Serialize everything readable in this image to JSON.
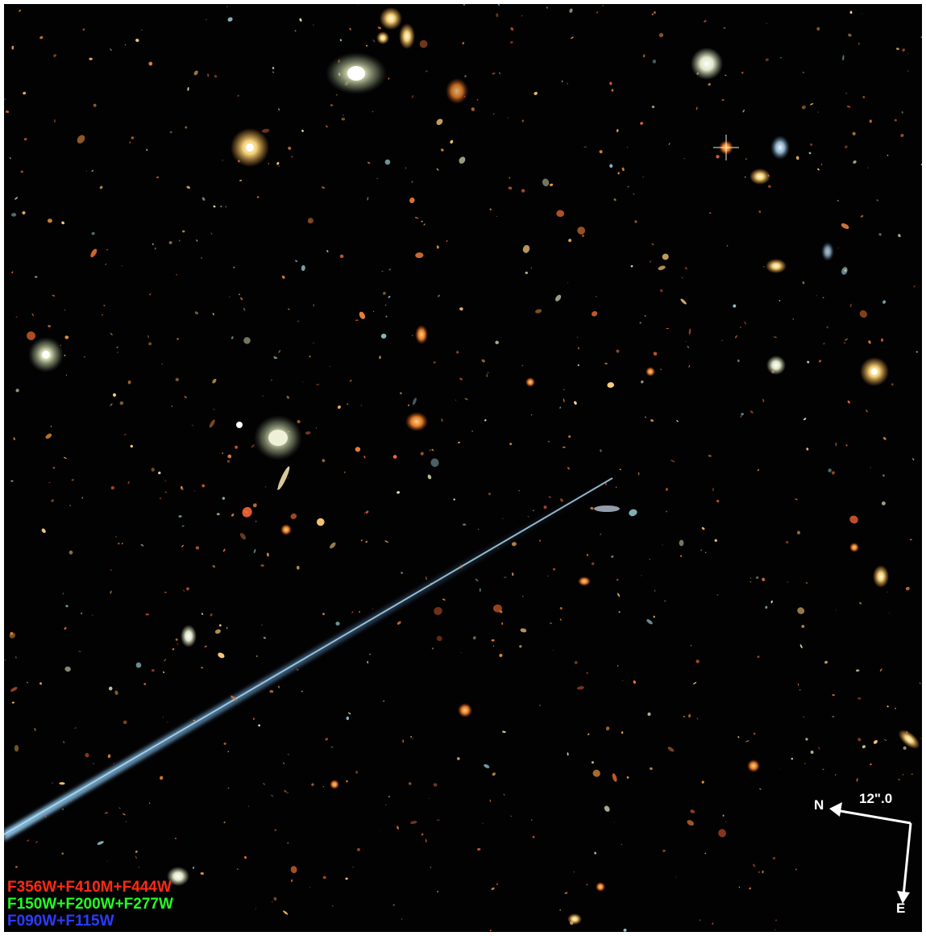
{
  "filters": {
    "red": {
      "label": "F356W+F410M+F444W",
      "color": "#ff2a14"
    },
    "green": {
      "label": "F150W+F200W+F277W",
      "color": "#22ff22"
    },
    "blue": {
      "label": "F090W+F115W",
      "color": "#2a3cff"
    }
  },
  "compass": {
    "north": "N",
    "east": "E",
    "scale": "12\".0",
    "color": "#ffffff"
  },
  "colors": {
    "background": "#030203",
    "border": "#ffffff"
  }
}
